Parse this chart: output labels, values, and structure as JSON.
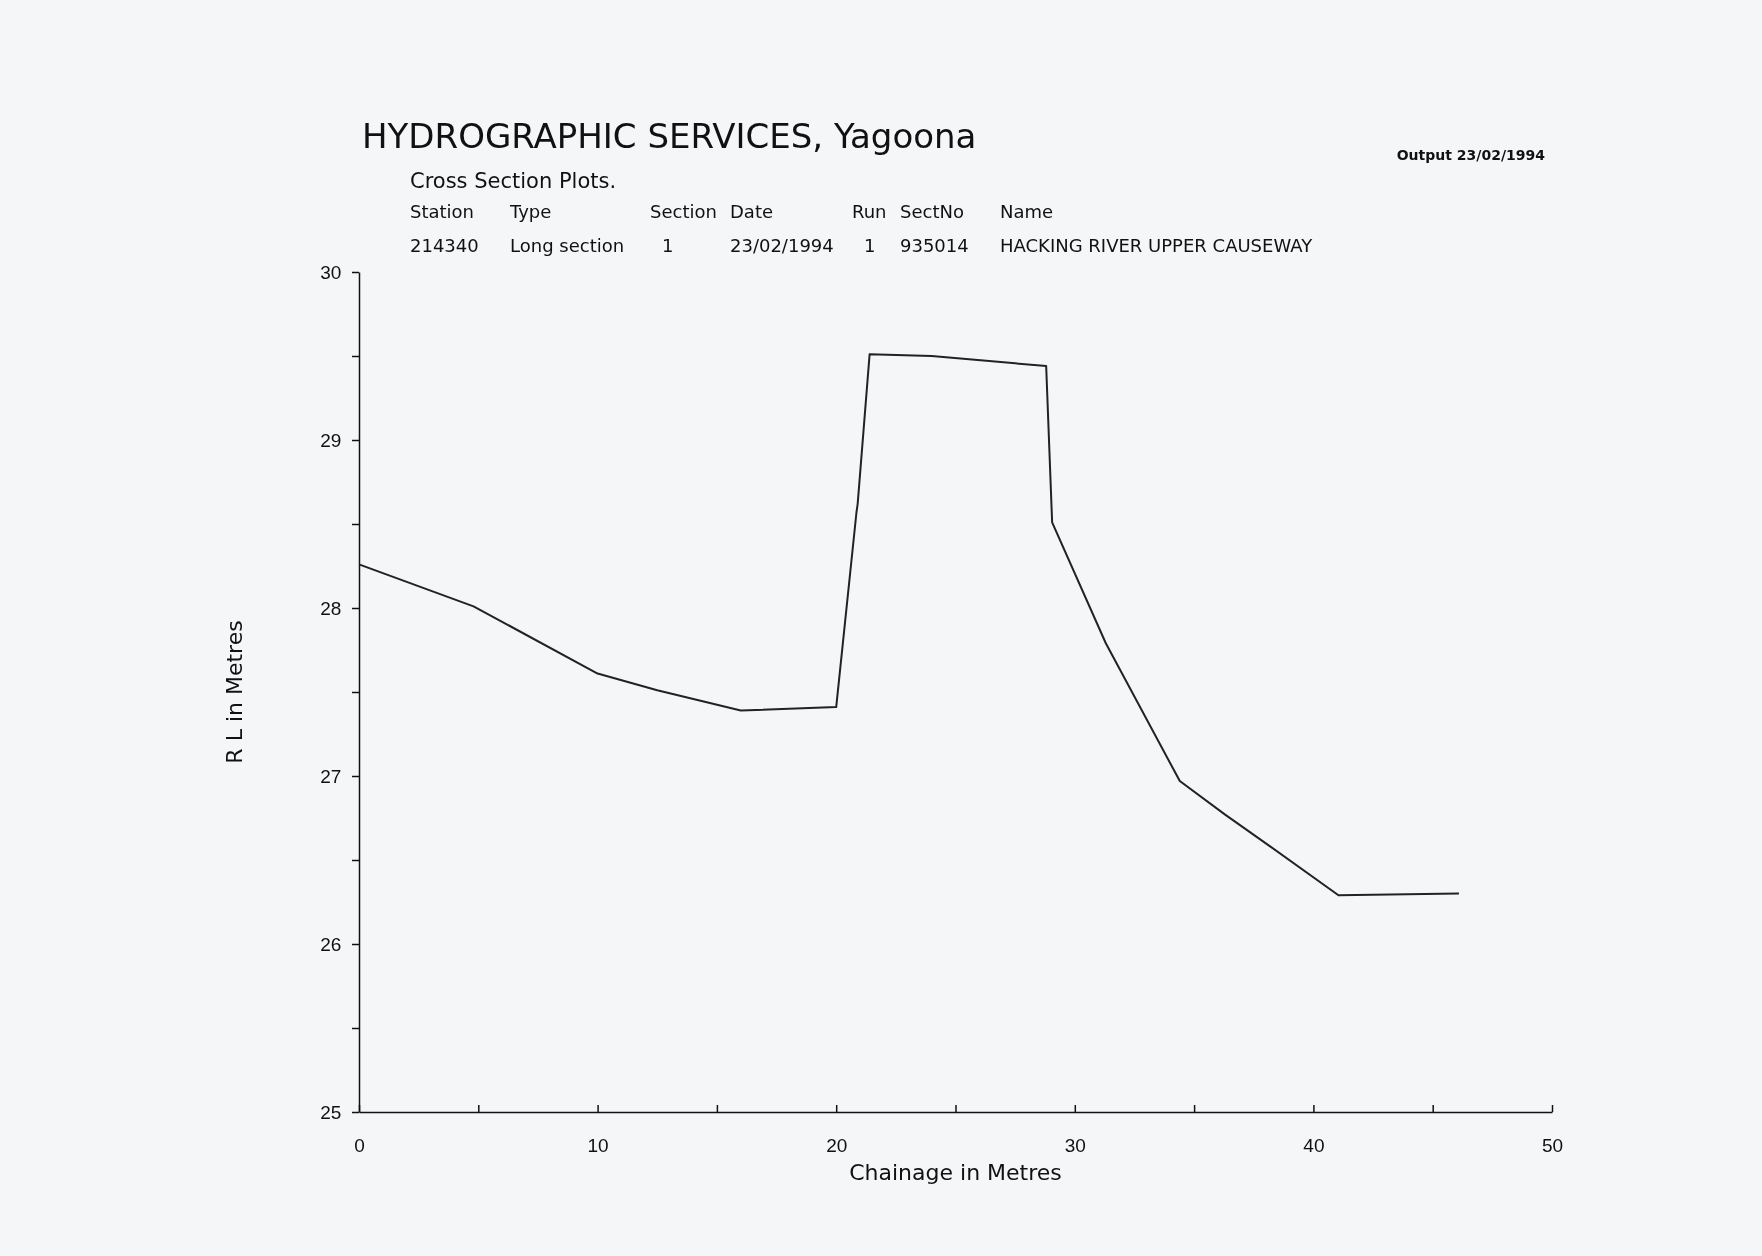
{
  "chart_data": {
    "type": "line",
    "title": "HYDROGRAPHIC SERVICES, Yagoona",
    "subtitle": "Cross Section Plots.",
    "xlabel": "Chainage in Metres",
    "ylabel": "R L  in Metres",
    "annotations": [
      "Output 23/02/1994",
      "Station",
      "Type",
      "Section",
      "Date",
      "Run",
      "SectNo",
      "Name",
      "214340",
      "Long section",
      "1",
      "23/02/1994",
      "1",
      "935014",
      "HACKING RIVER UPPER CAUSEWAY"
    ],
    "xlim": [
      0,
      50
    ],
    "ylim": [
      25,
      30
    ],
    "xticks": [
      0,
      {
        "value": 5,
        "label": null
      },
      10,
      {
        "value": 15,
        "label": null
      },
      20,
      {
        "value": 25,
        "label": null
      },
      30,
      {
        "value": 35,
        "label": null
      },
      40,
      {
        "value": 45,
        "label": null
      },
      50
    ],
    "yticks": [
      25,
      {
        "value": 25.5,
        "label": null
      },
      26,
      {
        "value": 26.5,
        "label": null
      },
      27,
      {
        "value": 27.5,
        "label": null
      },
      28,
      {
        "value": 28.5,
        "label": null
      },
      29,
      {
        "value": 29.5,
        "label": null
      },
      30
    ],
    "marker": "none",
    "line_style": "solid",
    "series": [
      {
        "color": "#222222",
        "x": [
          0,
          4.8,
          10,
          12.5,
          16,
          20,
          20.85,
          20.9,
          21.4,
          24,
          28.8,
          29.05,
          31.3,
          34.4,
          36.3,
          38.2,
          41.05,
          46.1
        ],
        "values": [
          28.26,
          28.01,
          27.61,
          27.51,
          27.39,
          27.41,
          28.57,
          28.62,
          29.51,
          29.5,
          29.44,
          28.51,
          27.79,
          26.97,
          26.77,
          26.58,
          26.29,
          26.3
        ]
      }
    ]
  }
}
